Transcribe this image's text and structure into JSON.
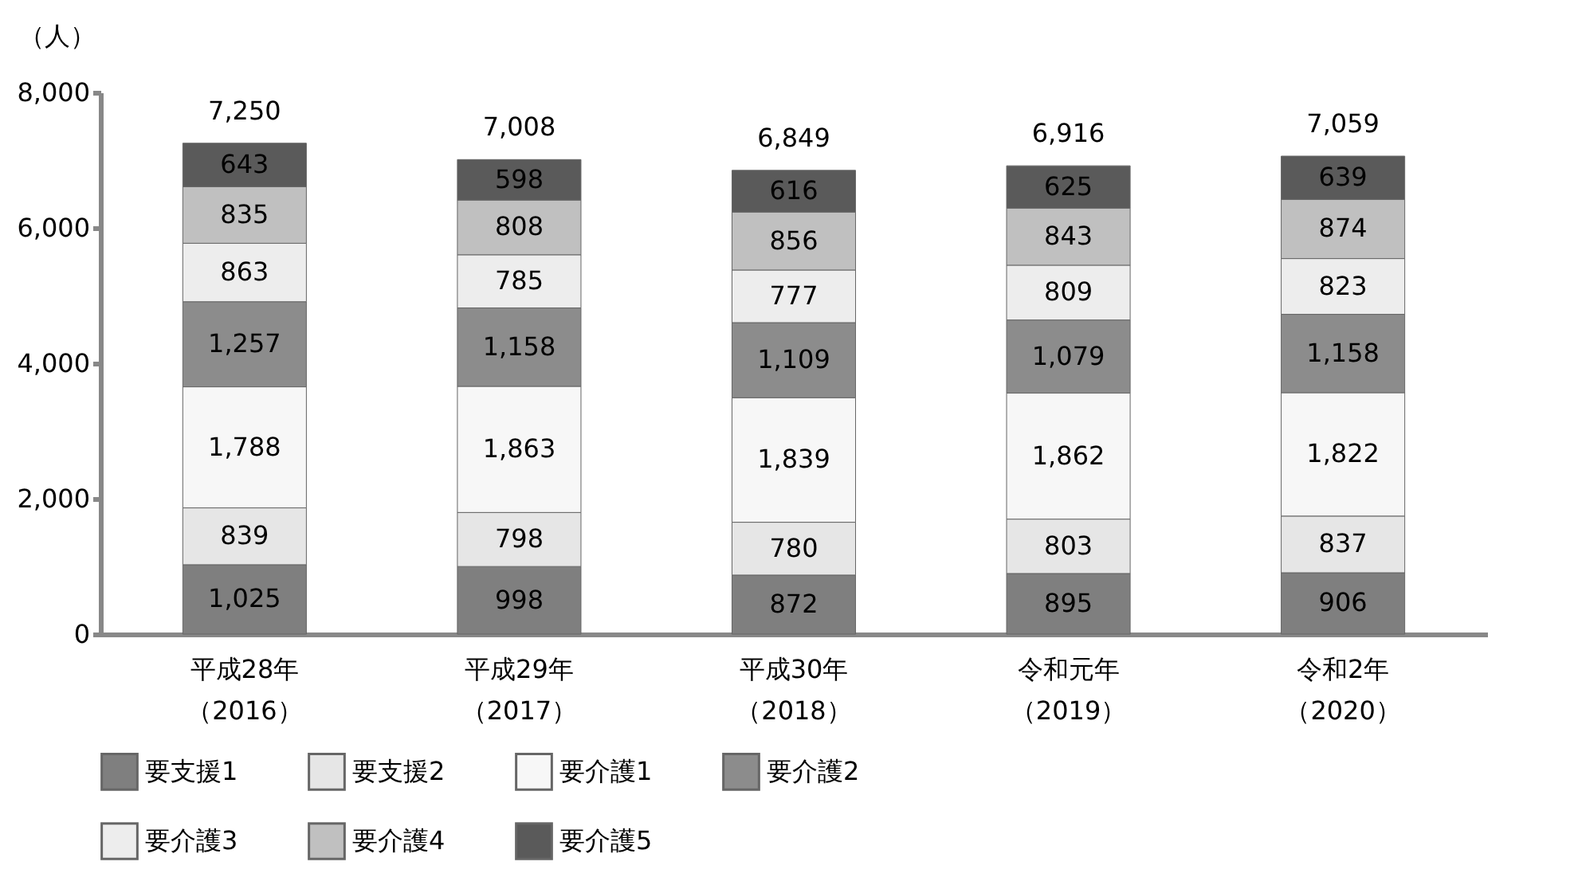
{
  "chart_data": {
    "type": "bar",
    "stacked": true,
    "ylabel": "（人）",
    "categories": [
      "平成28年（2016）",
      "平成29年（2017）",
      "平成30年（2018）",
      "令和元年（2019）",
      "令和2年（2020）"
    ],
    "series": [
      {
        "name": "要支援1",
        "color": "#7f7f7f",
        "values": [
          1025,
          998,
          872,
          895,
          906
        ],
        "value_labels": [
          "1,025",
          "998",
          "872",
          "895",
          "906"
        ]
      },
      {
        "name": "要支援2",
        "color": "#e6e6e6",
        "values": [
          839,
          798,
          780,
          803,
          837
        ],
        "value_labels": [
          "839",
          "798",
          "780",
          "803",
          "837"
        ]
      },
      {
        "name": "要介護1",
        "color": "#f7f7f7",
        "values": [
          1788,
          1863,
          1839,
          1862,
          1822
        ],
        "value_labels": [
          "1,788",
          "1,863",
          "1,839",
          "1,862",
          "1,822"
        ]
      },
      {
        "name": "要介護2",
        "color": "#8c8c8c",
        "values": [
          1257,
          1158,
          1109,
          1079,
          1158
        ],
        "value_labels": [
          "1,257",
          "1,158",
          "1,109",
          "1,079",
          "1,158"
        ]
      },
      {
        "name": "要介護3",
        "color": "#ededed",
        "values": [
          863,
          785,
          777,
          809,
          823
        ],
        "value_labels": [
          "863",
          "785",
          "777",
          "809",
          "823"
        ]
      },
      {
        "name": "要介護4",
        "color": "#c0c0c0",
        "values": [
          835,
          808,
          856,
          843,
          874
        ],
        "value_labels": [
          "835",
          "808",
          "856",
          "843",
          "874"
        ]
      },
      {
        "name": "要介護5",
        "color": "#5a5a5a",
        "values": [
          643,
          598,
          616,
          625,
          639
        ],
        "value_labels": [
          "643",
          "598",
          "616",
          "625",
          "639"
        ]
      }
    ],
    "totals": [
      "7,250",
      "7,008",
      "6,849",
      "6,916",
      "7,059"
    ],
    "ylim": [
      0,
      8000
    ],
    "yticks": [
      0,
      {
        "value": 2000,
        "label": "2,000"
      },
      {
        "value": 4000,
        "label": "4,000"
      },
      {
        "value": 6000,
        "label": "6,000"
      },
      {
        "value": 8000,
        "label": "8,000"
      }
    ],
    "grid": false,
    "legend": "bottom"
  }
}
